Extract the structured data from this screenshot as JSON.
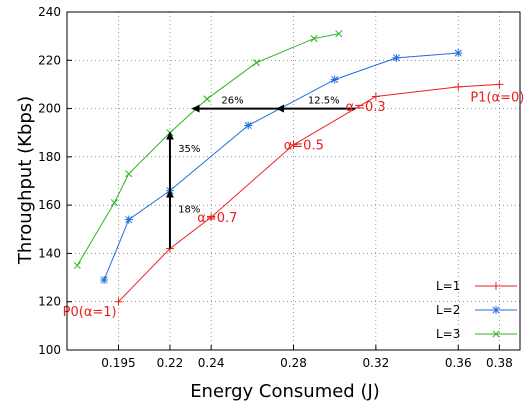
{
  "chart_data": {
    "type": "line",
    "xlabel": "Energy Consumed (J)",
    "ylabel": "Throughput (Kbps)",
    "xlim": [
      0.17,
      0.39
    ],
    "ylim": [
      100,
      240
    ],
    "x_ticks": [
      0.195,
      0.22,
      0.24,
      0.28,
      0.32,
      0.36,
      0.38
    ],
    "x_tick_labels": [
      "0.195",
      "0.22",
      "0.24",
      "0.28",
      "0.32",
      "0.36",
      "0.38"
    ],
    "y_ticks": [
      100,
      120,
      140,
      160,
      180,
      200,
      220,
      240
    ],
    "y_tick_labels": [
      "100",
      "120",
      "140",
      "160",
      "180",
      "200",
      "220",
      "240"
    ],
    "grid": true,
    "legend_position": "bottom-right",
    "series": [
      {
        "name": "L=1",
        "color": "#e8211f",
        "marker": "plus",
        "x": [
          0.195,
          0.22,
          0.24,
          0.28,
          0.32,
          0.36,
          0.38
        ],
        "y": [
          120,
          142,
          155,
          185,
          205,
          209,
          210
        ]
      },
      {
        "name": "L=2",
        "color": "#1f6fe0",
        "marker": "star",
        "x": [
          0.188,
          0.2,
          0.22,
          0.258,
          0.3,
          0.33,
          0.36
        ],
        "y": [
          129,
          154,
          166,
          193,
          212,
          221,
          223
        ]
      },
      {
        "name": "L=3",
        "color": "#2bb51f",
        "marker": "cross",
        "x": [
          0.175,
          0.193,
          0.2,
          0.22,
          0.238,
          0.262,
          0.29,
          0.302
        ],
        "y": [
          135,
          161,
          173,
          190,
          204,
          219,
          229,
          231
        ]
      }
    ],
    "annotations": {
      "red_labels": [
        {
          "text": "P1(α=0)",
          "x": 0.379,
          "y": 203
        },
        {
          "text": "α=0.3",
          "x": 0.315,
          "y": 199
        },
        {
          "text": "α=0.5",
          "x": 0.285,
          "y": 183
        },
        {
          "text": "α=0.7",
          "x": 0.243,
          "y": 153
        },
        {
          "text": "P0(α=1)",
          "x": 0.181,
          "y": 114
        }
      ],
      "arrows": [
        {
          "x1": 0.31,
          "y1": 200,
          "x2": 0.272,
          "y2": 200,
          "label": "12.5%",
          "lx": 0.287,
          "ly": 202
        },
        {
          "x1": 0.272,
          "y1": 200,
          "x2": 0.231,
          "y2": 200,
          "label": "26%",
          "lx": 0.245,
          "ly": 202
        },
        {
          "x1": 0.22,
          "y1": 142,
          "x2": 0.22,
          "y2": 166,
          "label": "18%",
          "lx": 0.224,
          "ly": 157
        },
        {
          "x1": 0.22,
          "y1": 166,
          "x2": 0.22,
          "y2": 190,
          "label": "35%",
          "lx": 0.224,
          "ly": 182
        }
      ]
    }
  }
}
